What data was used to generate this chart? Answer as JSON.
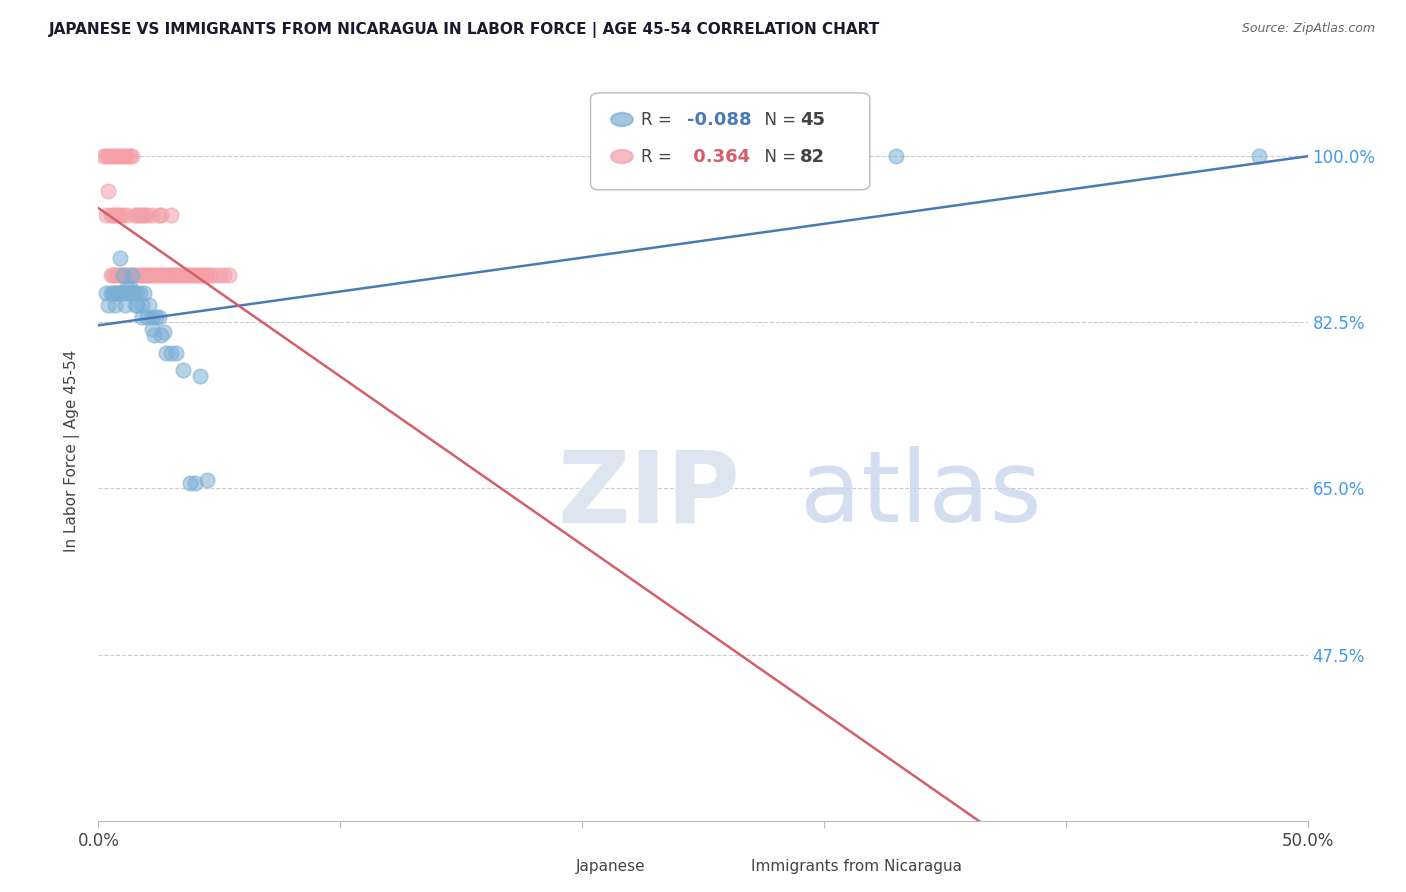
{
  "title": "JAPANESE VS IMMIGRANTS FROM NICARAGUA IN LABOR FORCE | AGE 45-54 CORRELATION CHART",
  "source": "Source: ZipAtlas.com",
  "ylabel": "In Labor Force | Age 45-54",
  "xlim": [
    0.0,
    0.5
  ],
  "ylim": [
    0.3,
    1.08
  ],
  "xtick_pos": [
    0.0,
    0.1,
    0.2,
    0.3,
    0.4,
    0.5
  ],
  "xtick_labels": [
    "0.0%",
    "",
    "",
    "",
    "",
    "50.0%"
  ],
  "ytick_right_pos": [
    0.475,
    0.65,
    0.825,
    1.0
  ],
  "ytick_right_labels": [
    "47.5%",
    "65.0%",
    "82.5%",
    "100.0%"
  ],
  "grid_color": "#cccccc",
  "legend_R_japanese": "-0.088",
  "legend_N_japanese": "45",
  "legend_R_nicaragua": "0.364",
  "legend_N_nicaragua": "82",
  "japanese_color": "#7bafd4",
  "nicaragua_color": "#f4a0a8",
  "trend_japanese_color": "#4a7ab5",
  "trend_nicaragua_color": "#d45f6a",
  "japanese_x": [
    0.003,
    0.004,
    0.005,
    0.006,
    0.007,
    0.007,
    0.008,
    0.009,
    0.009,
    0.01,
    0.01,
    0.011,
    0.012,
    0.012,
    0.013,
    0.013,
    0.014,
    0.014,
    0.015,
    0.015,
    0.016,
    0.016,
    0.017,
    0.018,
    0.018,
    0.019,
    0.02,
    0.021,
    0.022,
    0.022,
    0.023,
    0.024,
    0.025,
    0.026,
    0.027,
    0.028,
    0.03,
    0.032,
    0.035,
    0.038,
    0.04,
    0.042,
    0.045,
    0.33,
    0.48
  ],
  "japanese_y": [
    0.856,
    0.843,
    0.856,
    0.856,
    0.856,
    0.843,
    0.856,
    0.893,
    0.856,
    0.875,
    0.856,
    0.843,
    0.862,
    0.856,
    0.862,
    0.856,
    0.875,
    0.856,
    0.856,
    0.843,
    0.856,
    0.843,
    0.856,
    0.831,
    0.843,
    0.856,
    0.831,
    0.843,
    0.831,
    0.818,
    0.812,
    0.831,
    0.831,
    0.812,
    0.815,
    0.793,
    0.793,
    0.793,
    0.775,
    0.656,
    0.656,
    0.768,
    0.659,
    1.0,
    1.0
  ],
  "nicaragua_x": [
    0.002,
    0.003,
    0.003,
    0.004,
    0.004,
    0.005,
    0.005,
    0.005,
    0.006,
    0.006,
    0.006,
    0.007,
    0.007,
    0.007,
    0.007,
    0.008,
    0.008,
    0.008,
    0.008,
    0.009,
    0.009,
    0.009,
    0.009,
    0.01,
    0.01,
    0.01,
    0.011,
    0.011,
    0.012,
    0.012,
    0.012,
    0.013,
    0.013,
    0.014,
    0.014,
    0.015,
    0.015,
    0.015,
    0.016,
    0.016,
    0.017,
    0.017,
    0.018,
    0.018,
    0.019,
    0.019,
    0.02,
    0.02,
    0.021,
    0.022,
    0.022,
    0.023,
    0.024,
    0.025,
    0.025,
    0.026,
    0.026,
    0.027,
    0.028,
    0.029,
    0.03,
    0.03,
    0.031,
    0.032,
    0.033,
    0.034,
    0.035,
    0.036,
    0.037,
    0.038,
    0.039,
    0.04,
    0.041,
    0.042,
    0.043,
    0.044,
    0.045,
    0.046,
    0.048,
    0.05,
    0.052,
    0.054
  ],
  "nicaragua_y": [
    1.0,
    1.0,
    0.938,
    1.0,
    0.963,
    1.0,
    0.938,
    0.875,
    1.0,
    0.938,
    0.875,
    1.0,
    0.938,
    0.875,
    0.856,
    1.0,
    0.938,
    0.875,
    0.856,
    1.0,
    0.938,
    0.875,
    0.856,
    1.0,
    0.938,
    0.875,
    1.0,
    0.875,
    1.0,
    0.938,
    0.875,
    1.0,
    0.875,
    1.0,
    0.875,
    0.938,
    0.875,
    0.856,
    0.938,
    0.875,
    0.938,
    0.875,
    0.938,
    0.875,
    0.938,
    0.875,
    0.938,
    0.875,
    0.875,
    0.938,
    0.875,
    0.875,
    0.875,
    0.938,
    0.875,
    0.938,
    0.875,
    0.875,
    0.875,
    0.875,
    0.938,
    0.875,
    0.875,
    0.875,
    0.875,
    0.875,
    0.875,
    0.875,
    0.875,
    0.875,
    0.875,
    0.875,
    0.875,
    0.875,
    0.875,
    0.875,
    0.875,
    0.875,
    0.875,
    0.875,
    0.875,
    0.875
  ]
}
